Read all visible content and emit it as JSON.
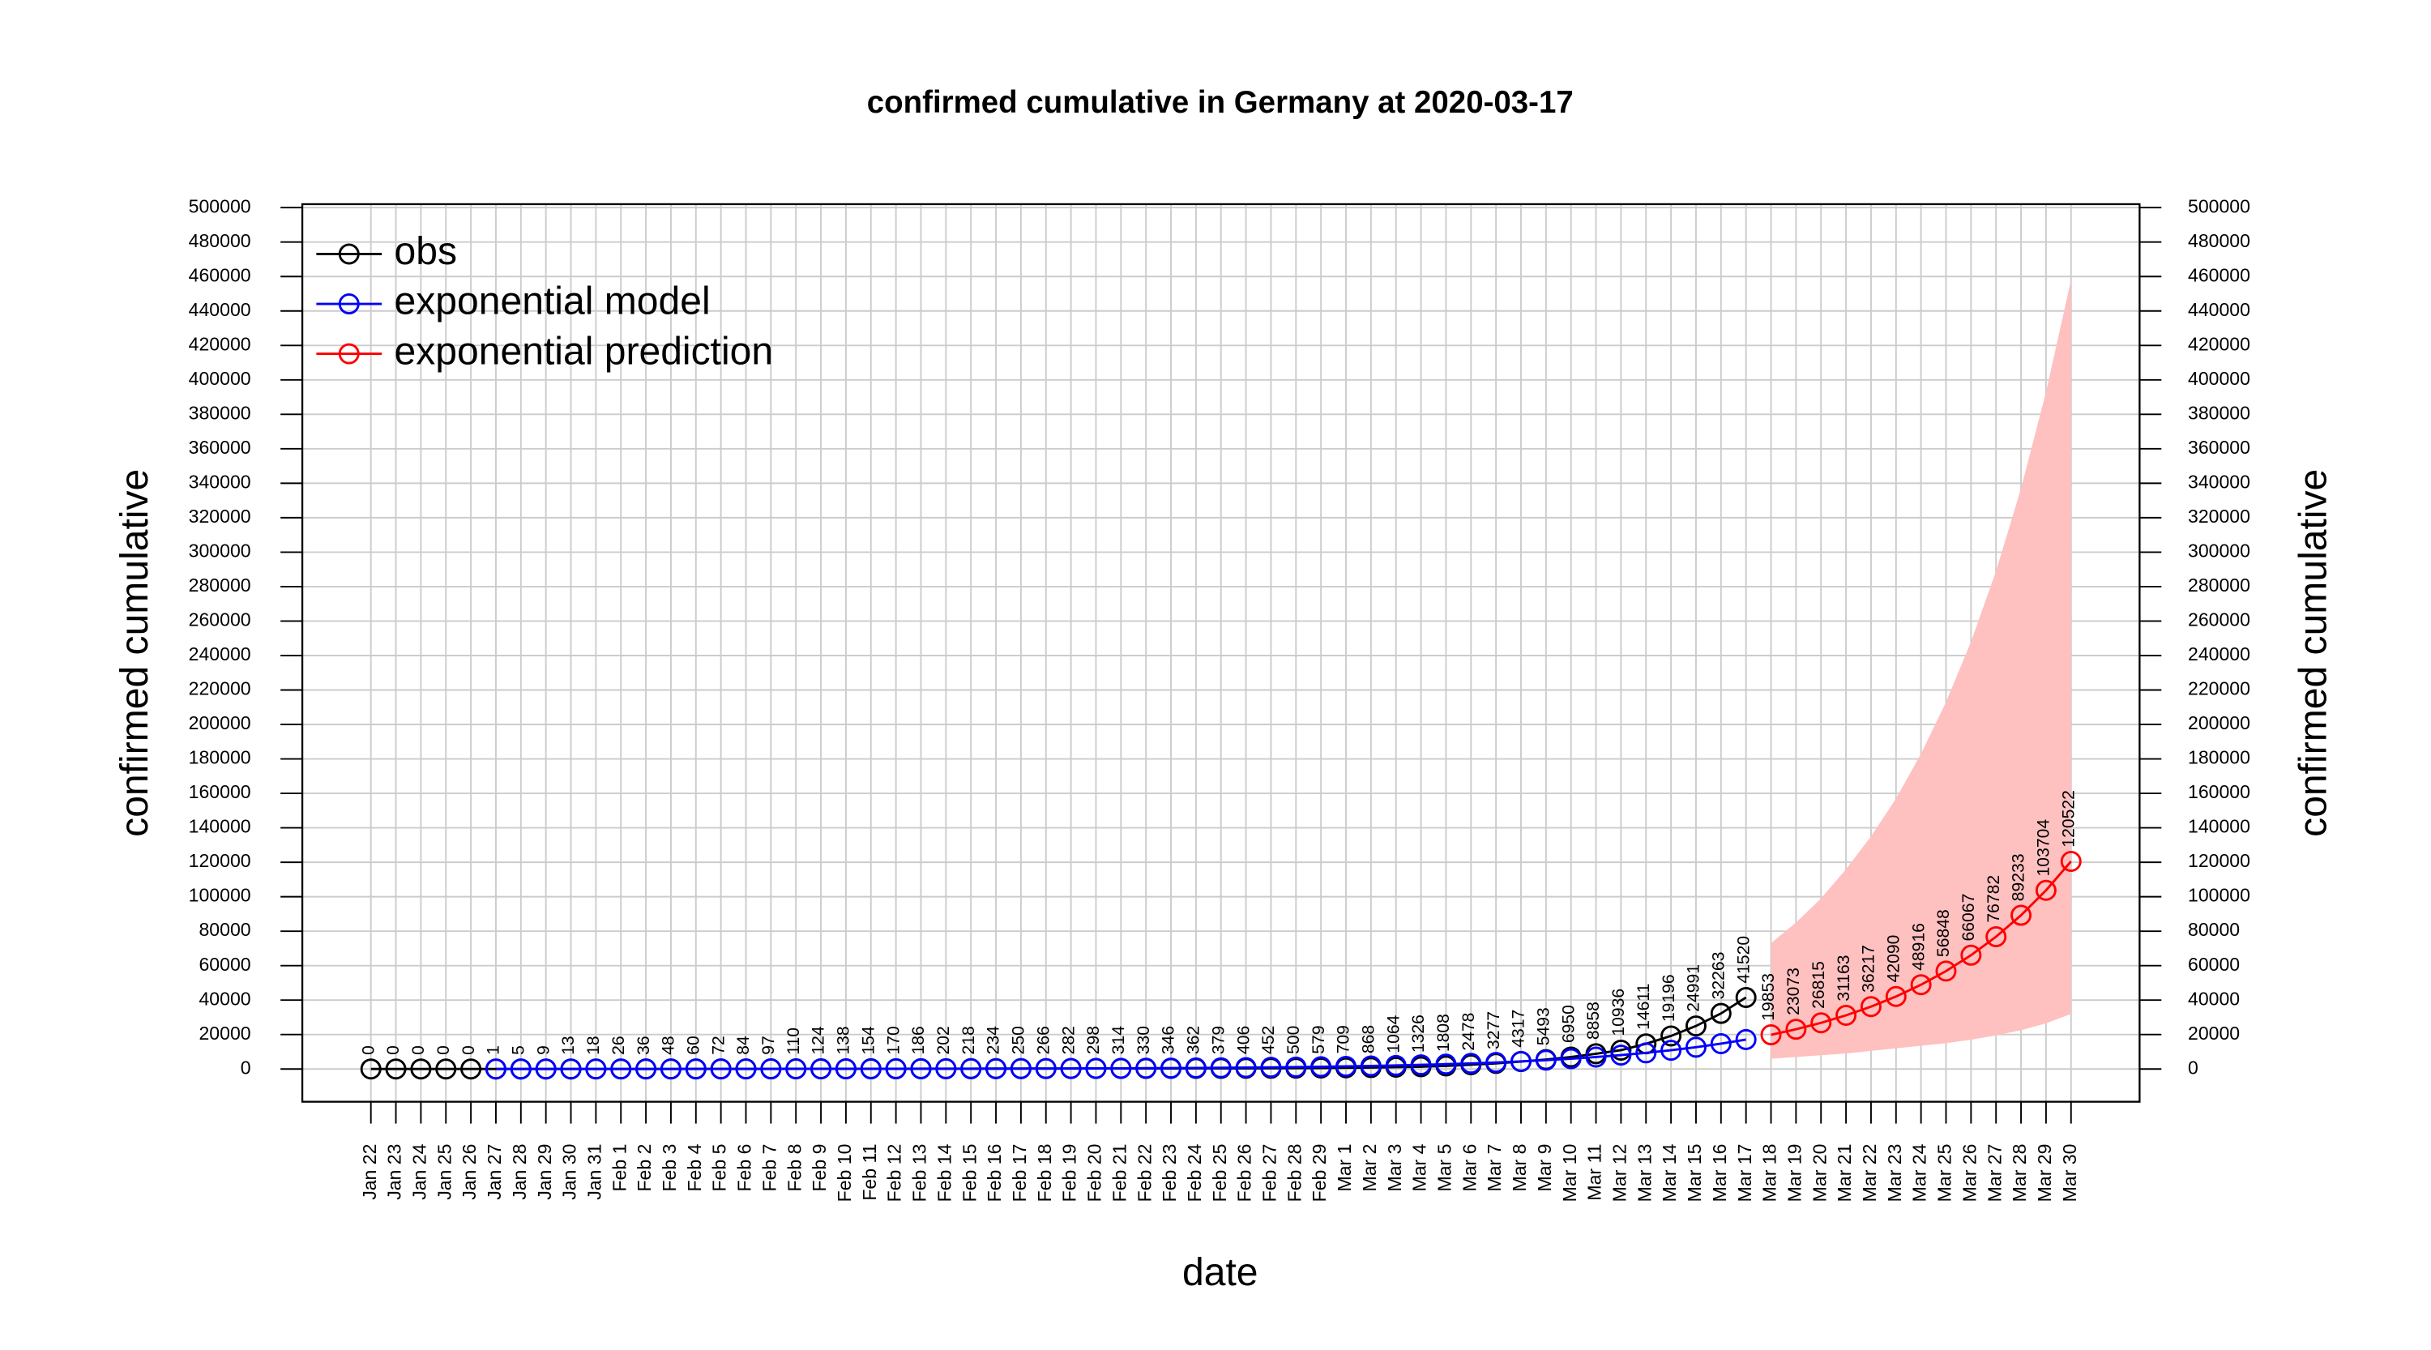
{
  "chart_data": {
    "type": "line",
    "title": "confirmed cumulative in Germany at 2020-03-17",
    "xlabel": "date",
    "ylabel": "confirmed cumulative",
    "y2label": "confirmed cumulative",
    "categories": [
      "Jan 22",
      "Jan 23",
      "Jan 24",
      "Jan 25",
      "Jan 26",
      "Jan 27",
      "Jan 28",
      "Jan 29",
      "Jan 30",
      "Jan 31",
      "Feb 1",
      "Feb 2",
      "Feb 3",
      "Feb 4",
      "Feb 5",
      "Feb 6",
      "Feb 7",
      "Feb 8",
      "Feb 9",
      "Feb 10",
      "Feb 11",
      "Feb 12",
      "Feb 13",
      "Feb 14",
      "Feb 15",
      "Feb 16",
      "Feb 17",
      "Feb 18",
      "Feb 19",
      "Feb 20",
      "Feb 21",
      "Feb 22",
      "Feb 23",
      "Feb 24",
      "Feb 25",
      "Feb 26",
      "Feb 27",
      "Feb 28",
      "Feb 29",
      "Mar 1",
      "Mar 2",
      "Mar 3",
      "Mar 4",
      "Mar 5",
      "Mar 6",
      "Mar 7",
      "Mar 8",
      "Mar 9",
      "Mar 10",
      "Mar 11",
      "Mar 12",
      "Mar 13",
      "Mar 14",
      "Mar 15",
      "Mar 16",
      "Mar 17",
      "Mar 18",
      "Mar 19",
      "Mar 20",
      "Mar 21",
      "Mar 22",
      "Mar 23",
      "Mar 24",
      "Mar 25",
      "Mar 26",
      "Mar 27",
      "Mar 28",
      "Mar 29",
      "Mar 30"
    ],
    "series": [
      {
        "name": "obs",
        "color": "#000000",
        "labels": true,
        "values": [
          0,
          0,
          0,
          0,
          0,
          1,
          5,
          9,
          13,
          18,
          26,
          36,
          48,
          60,
          72,
          84,
          97,
          110,
          124,
          138,
          154,
          170,
          186,
          202,
          218,
          234,
          250,
          266,
          282,
          298,
          314,
          330,
          346,
          362,
          379,
          406,
          452,
          500,
          579,
          709,
          868,
          1064,
          1326,
          1808,
          2478,
          3277,
          4317,
          5493,
          6950,
          8858,
          10936,
          14611,
          19196,
          24991,
          32263,
          41520,
          null,
          null,
          null,
          null,
          null,
          null,
          null,
          null,
          null,
          null,
          null,
          null,
          null
        ]
      },
      {
        "name": "exponential model",
        "color": "#0000ff",
        "labels": false,
        "values": [
          null,
          null,
          null,
          null,
          null,
          9,
          11,
          13,
          15,
          17,
          20,
          23,
          27,
          31,
          36,
          42,
          49,
          57,
          66,
          77,
          89,
          104,
          120,
          140,
          163,
          189,
          220,
          255,
          297,
          345,
          400,
          465,
          541,
          628,
          730,
          848,
          986,
          1145,
          1331,
          1547,
          1797,
          2088,
          2427,
          2820,
          3276,
          3807,
          4424,
          5140,
          5973,
          6940,
          8065,
          9371,
          10889,
          12653,
          14703,
          17085,
          null,
          null,
          null,
          null,
          null,
          null,
          null,
          null,
          null,
          null,
          null,
          null,
          null
        ]
      },
      {
        "name": "exponential prediction",
        "color": "#ff0000",
        "labels": true,
        "values": [
          null,
          null,
          null,
          null,
          null,
          null,
          null,
          null,
          null,
          null,
          null,
          null,
          null,
          null,
          null,
          null,
          null,
          null,
          null,
          null,
          null,
          null,
          null,
          null,
          null,
          null,
          null,
          null,
          null,
          null,
          null,
          null,
          null,
          null,
          null,
          null,
          null,
          null,
          null,
          null,
          null,
          null,
          null,
          null,
          null,
          null,
          null,
          null,
          null,
          null,
          null,
          null,
          null,
          null,
          null,
          null,
          19853,
          23073,
          26815,
          31163,
          36217,
          42090,
          48916,
          56848,
          66067,
          76782,
          89233,
          103704,
          120522
        ]
      }
    ],
    "band": {
      "color": "#ffc0c0",
      "lower": [
        null,
        null,
        null,
        null,
        null,
        null,
        null,
        null,
        null,
        null,
        null,
        null,
        null,
        null,
        null,
        null,
        null,
        null,
        null,
        null,
        null,
        null,
        null,
        null,
        null,
        null,
        null,
        null,
        null,
        null,
        null,
        null,
        null,
        null,
        null,
        null,
        null,
        null,
        null,
        null,
        null,
        null,
        null,
        null,
        null,
        null,
        null,
        null,
        null,
        null,
        null,
        null,
        null,
        null,
        null,
        null,
        6000,
        7000,
        8000,
        9000,
        10500,
        12000,
        13500,
        15000,
        17000,
        19500,
        22500,
        26500,
        32000
      ],
      "upper": [
        null,
        null,
        null,
        null,
        null,
        null,
        null,
        null,
        null,
        null,
        null,
        null,
        null,
        null,
        null,
        null,
        null,
        null,
        null,
        null,
        null,
        null,
        null,
        null,
        null,
        null,
        null,
        null,
        null,
        null,
        null,
        null,
        null,
        null,
        null,
        null,
        null,
        null,
        null,
        null,
        null,
        null,
        null,
        null,
        null,
        null,
        null,
        null,
        null,
        null,
        null,
        null,
        null,
        null,
        null,
        null,
        73000,
        85000,
        99000,
        116000,
        135000,
        157000,
        183000,
        213000,
        248000,
        289000,
        337000,
        393000,
        458000
      ]
    },
    "ylim": [
      -19000,
      502000
    ],
    "yticks": [
      0,
      20000,
      40000,
      60000,
      80000,
      100000,
      120000,
      140000,
      160000,
      180000,
      200000,
      220000,
      240000,
      260000,
      280000,
      300000,
      320000,
      340000,
      360000,
      380000,
      400000,
      420000,
      440000,
      460000,
      480000,
      500000
    ],
    "y2lim": [
      -19000,
      502000
    ],
    "y2ticks": [
      0,
      20000,
      40000,
      60000,
      80000,
      100000,
      120000,
      140000,
      160000,
      180000,
      200000,
      220000,
      240000,
      260000,
      280000,
      300000,
      320000,
      340000,
      360000,
      380000,
      400000,
      420000,
      440000,
      460000,
      480000,
      500000
    ],
    "grid": true,
    "legend": "top-left"
  }
}
